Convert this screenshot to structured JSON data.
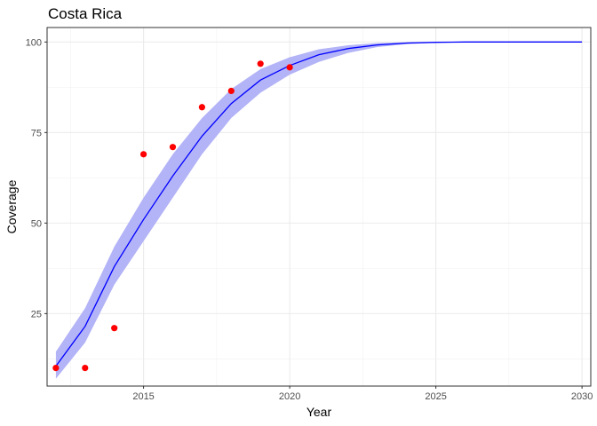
{
  "chart_data": {
    "type": "line",
    "title": "Costa Rica",
    "xlabel": "Year",
    "ylabel": "Coverage",
    "xlim": [
      2011.7,
      2030.3
    ],
    "ylim": [
      5,
      104
    ],
    "x_ticks": [
      2015,
      2020,
      2025,
      2030
    ],
    "y_ticks": [
      25,
      50,
      75,
      100
    ],
    "grid": true,
    "legend": "none",
    "colors": {
      "band": "#b3b3f7",
      "line": "#0000ff",
      "points": "#ff0000"
    },
    "series": [
      {
        "type": "line",
        "x": [
          2012,
          2013,
          2014,
          2015,
          2016,
          2017,
          2018,
          2019,
          2020,
          2021,
          2022,
          2023,
          2024,
          2025,
          2026,
          2027,
          2028,
          2029,
          2030
        ],
        "y": [
          10.5,
          21.5,
          38,
          51,
          63,
          74,
          83,
          89.5,
          93.5,
          96.5,
          98.2,
          99.2,
          99.7,
          99.9,
          100,
          100,
          100,
          100,
          100
        ],
        "lower": [
          7,
          17,
          33,
          45,
          57,
          69,
          79,
          86,
          91,
          94.5,
          97,
          98.6,
          99.4,
          99.8,
          99.95,
          100,
          100,
          100,
          100
        ],
        "upper": [
          14.5,
          26.5,
          43.5,
          57,
          69,
          79,
          87,
          92.5,
          95.8,
          98,
          99.1,
          99.7,
          99.9,
          100,
          100,
          100,
          100,
          100,
          100
        ]
      },
      {
        "type": "scatter",
        "x": [
          2012,
          2013,
          2014,
          2015,
          2016,
          2017,
          2018,
          2019,
          2020
        ],
        "y": [
          10,
          10,
          21,
          69,
          71,
          82,
          86.5,
          94,
          93
        ]
      }
    ]
  }
}
